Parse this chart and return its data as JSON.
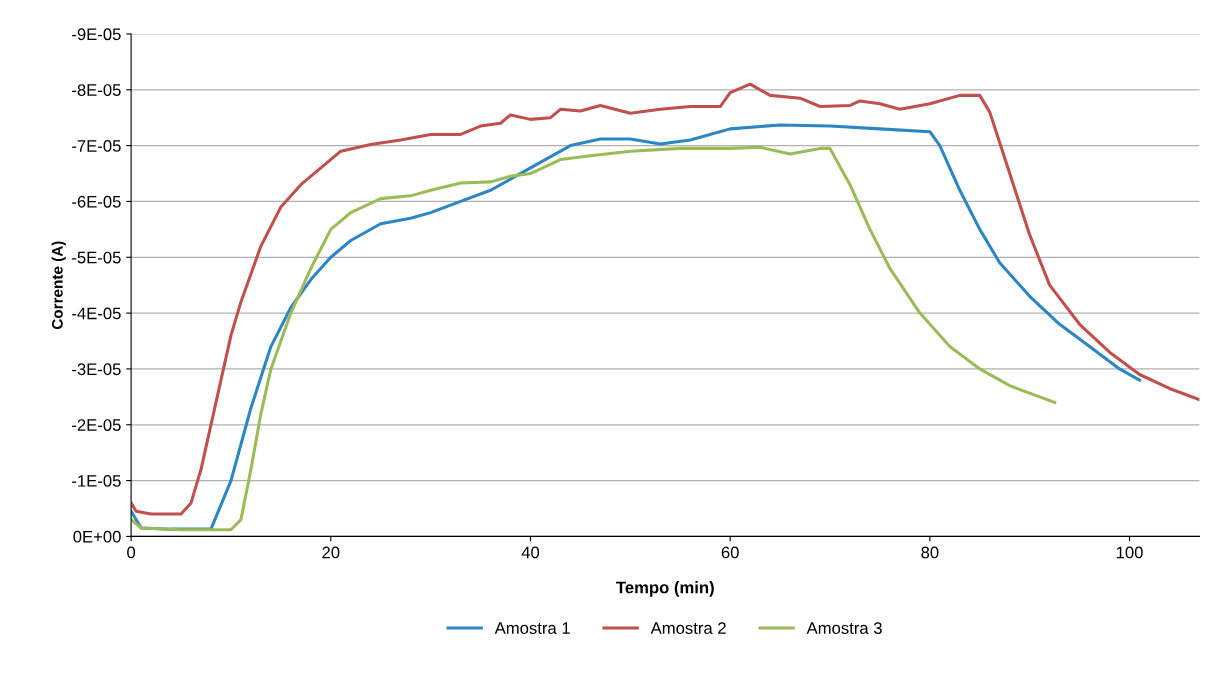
{
  "chart_data": {
    "type": "line",
    "xlabel": "Tempo (min)",
    "ylabel": "Corrente (A)",
    "xlim": [
      0,
      107
    ],
    "xticks": [
      0,
      20,
      40,
      60,
      80,
      100
    ],
    "ylim": [
      0,
      -9e-05
    ],
    "yticks": [
      {
        "value": 0,
        "label": "0E+00"
      },
      {
        "value": -1e-05,
        "label": "-1E-05"
      },
      {
        "value": -2e-05,
        "label": "-2E-05"
      },
      {
        "value": -3e-05,
        "label": "-3E-05"
      },
      {
        "value": -4e-05,
        "label": "-4E-05"
      },
      {
        "value": -5e-05,
        "label": "-5E-05"
      },
      {
        "value": -6e-05,
        "label": "-6E-05"
      },
      {
        "value": -7e-05,
        "label": "-7E-05"
      },
      {
        "value": -8e-05,
        "label": "-8E-05"
      },
      {
        "value": -9e-05,
        "label": "-9E-05"
      }
    ],
    "grid": "y",
    "legend": "bottom",
    "marker": "none",
    "line_style": "solid",
    "series": [
      {
        "name": "Amostra 1",
        "color": "#2a86c4",
        "x": [
          0,
          1,
          4,
          8,
          10,
          12,
          14,
          16,
          18,
          20,
          22,
          25,
          28,
          30,
          33,
          36,
          40,
          44,
          47,
          50,
          53,
          56,
          60,
          65,
          70,
          75,
          80,
          81,
          83,
          85,
          87,
          90,
          93,
          96,
          99,
          101
        ],
        "values": [
          -4.5e-06,
          -1.5e-06,
          -1.3e-06,
          -1.3e-06,
          -1e-05,
          -2.3e-05,
          -3.4e-05,
          -4.1e-05,
          -4.6e-05,
          -5e-05,
          -5.3e-05,
          -5.6e-05,
          -5.7e-05,
          -5.8e-05,
          -6e-05,
          -6.2e-05,
          -6.6e-05,
          -7e-05,
          -7.12e-05,
          -7.12e-05,
          -7.03e-05,
          -7.1e-05,
          -7.3e-05,
          -7.37e-05,
          -7.35e-05,
          -7.3e-05,
          -7.25e-05,
          -7e-05,
          -6.2e-05,
          -5.5e-05,
          -4.9e-05,
          -4.3e-05,
          -3.8e-05,
          -3.4e-05,
          -3e-05,
          -2.8e-05
        ]
      },
      {
        "name": "Amostra 2",
        "color": "#c0504d",
        "x": [
          0,
          0.5,
          2,
          5,
          6,
          7,
          8,
          9,
          10,
          11,
          13,
          15,
          17,
          19,
          21,
          24,
          27,
          30,
          33,
          35,
          37,
          38,
          40,
          42,
          43,
          45,
          47,
          50,
          53,
          56,
          59,
          60,
          62,
          64,
          67,
          69,
          72,
          73,
          75,
          77,
          80,
          83,
          85,
          86,
          88,
          90,
          92,
          95,
          98,
          101,
          104,
          107
        ],
        "values": [
          -6e-06,
          -4.5e-06,
          -4e-06,
          -4e-06,
          -6e-06,
          -1.2e-05,
          -2e-05,
          -2.8e-05,
          -3.6e-05,
          -4.2e-05,
          -5.2e-05,
          -5.9e-05,
          -6.3e-05,
          -6.6e-05,
          -6.9e-05,
          -7.02e-05,
          -7.1e-05,
          -7.2e-05,
          -7.2e-05,
          -7.35e-05,
          -7.4e-05,
          -7.55e-05,
          -7.47e-05,
          -7.5e-05,
          -7.65e-05,
          -7.62e-05,
          -7.72e-05,
          -7.58e-05,
          -7.65e-05,
          -7.7e-05,
          -7.7e-05,
          -7.95e-05,
          -8.1e-05,
          -7.9e-05,
          -7.85e-05,
          -7.7e-05,
          -7.72e-05,
          -7.8e-05,
          -7.75e-05,
          -7.65e-05,
          -7.75e-05,
          -7.9e-05,
          -7.9e-05,
          -7.6e-05,
          -6.5e-05,
          -5.4e-05,
          -4.5e-05,
          -3.8e-05,
          -3.3e-05,
          -2.9e-05,
          -2.65e-05,
          -2.45e-05
        ]
      },
      {
        "name": "Amostra 3",
        "color": "#9bbb59",
        "x": [
          0,
          1,
          5,
          10,
          11,
          12,
          13,
          14,
          16,
          18,
          20,
          22,
          25,
          28,
          30,
          33,
          36,
          38,
          40,
          43,
          46,
          50,
          55,
          60,
          63,
          66,
          69,
          70,
          72,
          74,
          76,
          79,
          82,
          85,
          88,
          91,
          92.5
        ],
        "values": [
          -3e-06,
          -1.5e-06,
          -1.2e-06,
          -1.2e-06,
          -3e-06,
          -1.2e-05,
          -2.2e-05,
          -3e-05,
          -4e-05,
          -4.8e-05,
          -5.5e-05,
          -5.8e-05,
          -6.05e-05,
          -6.1e-05,
          -6.2e-05,
          -6.33e-05,
          -6.35e-05,
          -6.45e-05,
          -6.5e-05,
          -6.75e-05,
          -6.82e-05,
          -6.9e-05,
          -6.95e-05,
          -6.95e-05,
          -6.97e-05,
          -6.85e-05,
          -6.95e-05,
          -6.95e-05,
          -6.3e-05,
          -5.5e-05,
          -4.8e-05,
          -4e-05,
          -3.4e-05,
          -3e-05,
          -2.7e-05,
          -2.5e-05,
          -2.4e-05
        ]
      }
    ]
  }
}
